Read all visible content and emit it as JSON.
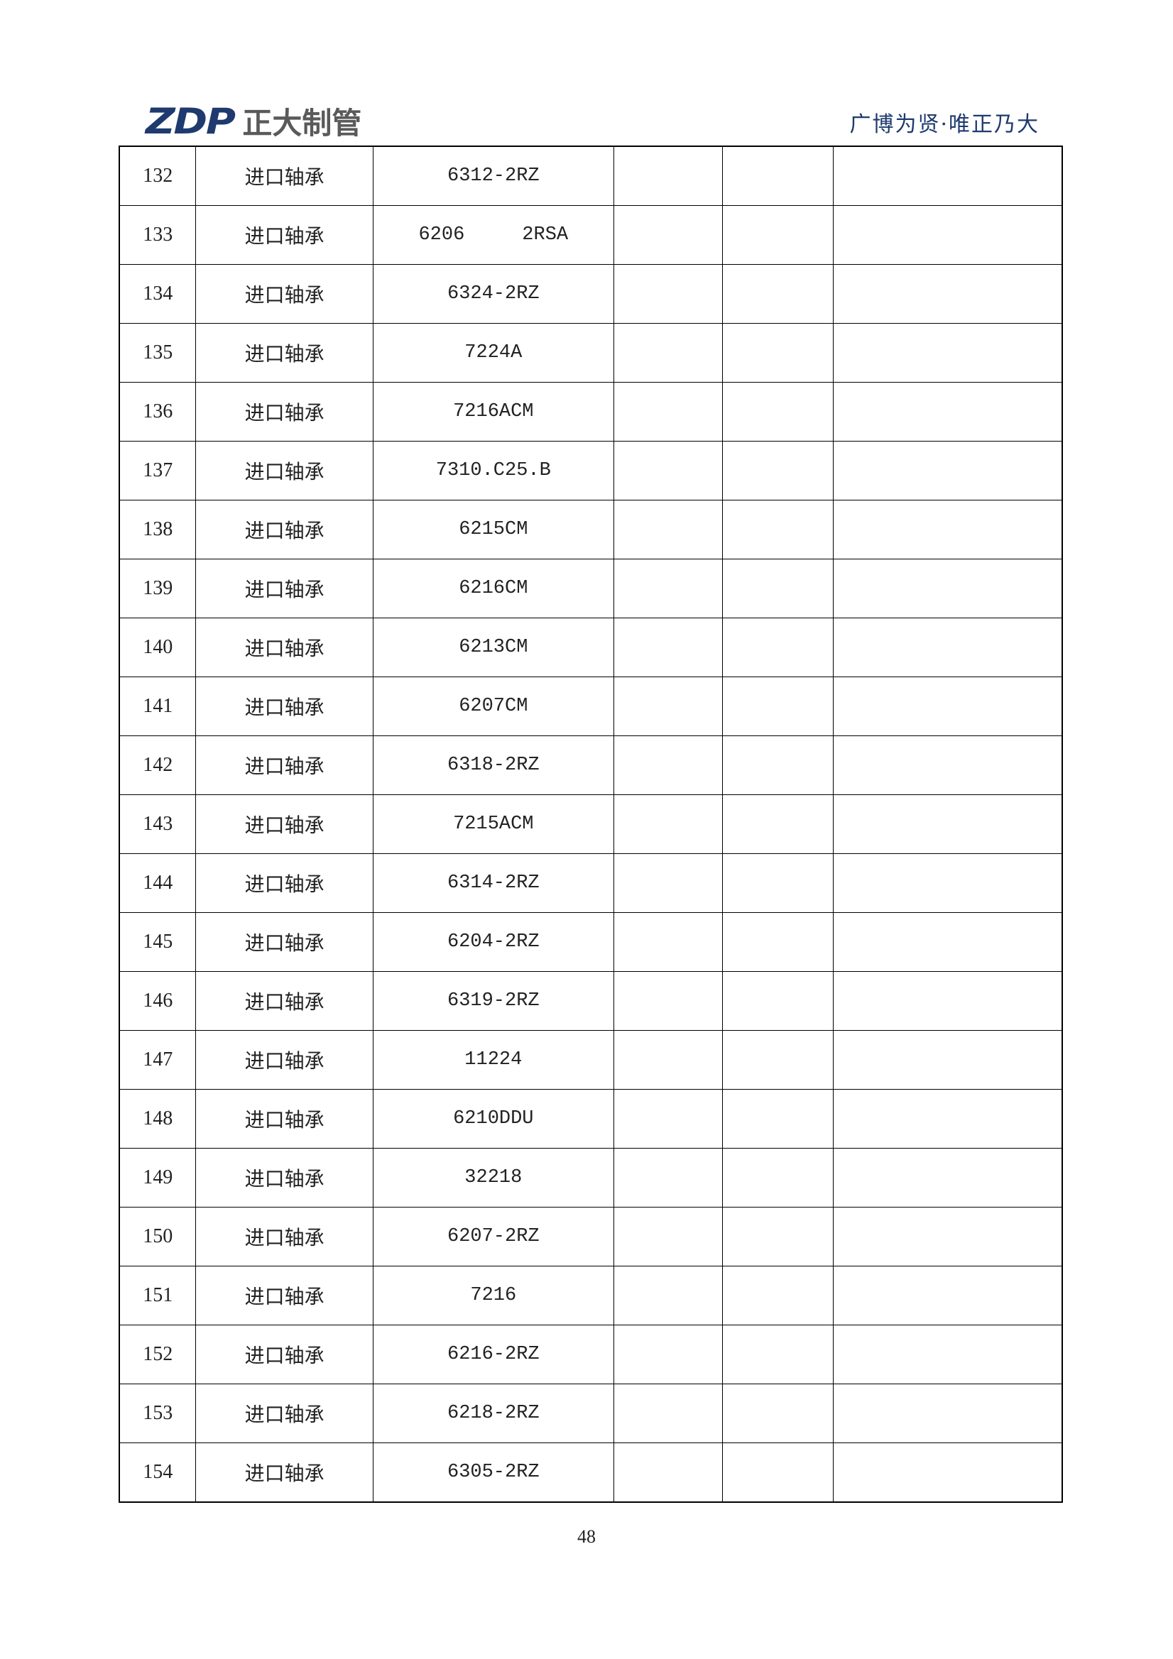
{
  "header": {
    "logo_text": "ZDP",
    "logo_cn": "正大制管",
    "slogan": "广博为贤·唯正乃大",
    "brand_color": "#1e3a6e"
  },
  "rows": [
    {
      "no": "132",
      "name": "进口轴承",
      "model": "6312-2RZ"
    },
    {
      "no": "133",
      "name": "进口轴承",
      "model": "6206     2RSA"
    },
    {
      "no": "134",
      "name": "进口轴承",
      "model": "6324-2RZ"
    },
    {
      "no": "135",
      "name": "进口轴承",
      "model": "7224A"
    },
    {
      "no": "136",
      "name": "进口轴承",
      "model": "7216ACM"
    },
    {
      "no": "137",
      "name": "进口轴承",
      "model": "7310.C25.B"
    },
    {
      "no": "138",
      "name": "进口轴承",
      "model": "6215CM"
    },
    {
      "no": "139",
      "name": "进口轴承",
      "model": "6216CM"
    },
    {
      "no": "140",
      "name": "进口轴承",
      "model": "6213CM"
    },
    {
      "no": "141",
      "name": "进口轴承",
      "model": "6207CM"
    },
    {
      "no": "142",
      "name": "进口轴承",
      "model": "6318-2RZ"
    },
    {
      "no": "143",
      "name": "进口轴承",
      "model": "7215ACM"
    },
    {
      "no": "144",
      "name": "进口轴承",
      "model": "6314-2RZ"
    },
    {
      "no": "145",
      "name": "进口轴承",
      "model": "6204-2RZ"
    },
    {
      "no": "146",
      "name": "进口轴承",
      "model": "6319-2RZ"
    },
    {
      "no": "147",
      "name": "进口轴承",
      "model": "11224"
    },
    {
      "no": "148",
      "name": "进口轴承",
      "model": "6210DDU"
    },
    {
      "no": "149",
      "name": "进口轴承",
      "model": "32218"
    },
    {
      "no": "150",
      "name": "进口轴承",
      "model": "6207-2RZ"
    },
    {
      "no": "151",
      "name": "进口轴承",
      "model": "7216"
    },
    {
      "no": "152",
      "name": "进口轴承",
      "model": "6216-2RZ"
    },
    {
      "no": "153",
      "name": "进口轴承",
      "model": "6218-2RZ"
    },
    {
      "no": "154",
      "name": "进口轴承",
      "model": "6305-2RZ"
    }
  ],
  "footer": {
    "page_number": "48"
  }
}
